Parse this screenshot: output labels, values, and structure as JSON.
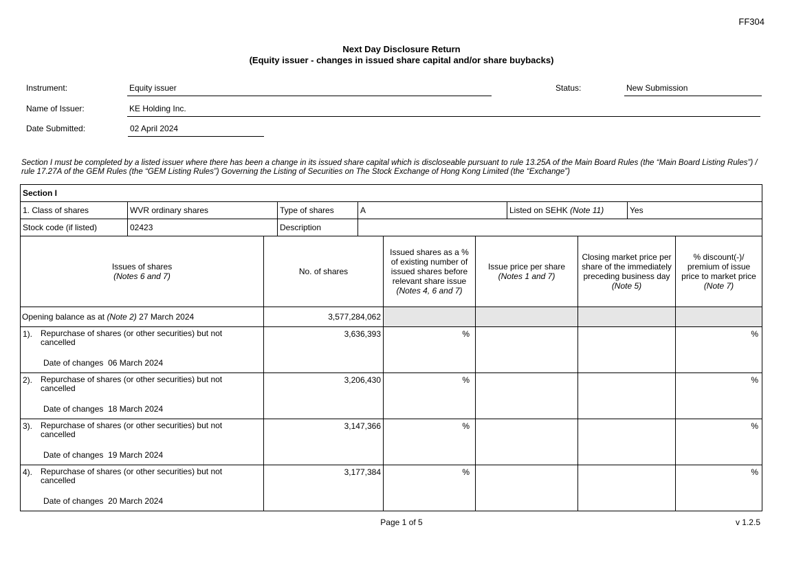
{
  "form_code": "FF304",
  "title": "Next Day Disclosure Return",
  "subtitle": "(Equity issuer - changes in issued share capital and/or share buybacks)",
  "header": {
    "instrument_label": "Instrument:",
    "instrument": "Equity issuer",
    "status_label": "Status:",
    "status": "New Submission",
    "issuer_label": "Name of Issuer:",
    "issuer": "KE Holding Inc.",
    "date_label": "Date Submitted:",
    "date": "02 April 2024"
  },
  "intro": "Section I must be completed by a listed issuer where there has been a change in its issued share capital which is discloseable pursuant to rule 13.25A of the Main Board Rules (the “Main Board Listing Rules”) / rule 17.27A of the GEM Rules (the “GEM Listing Rules”) Governing the Listing of Securities on The Stock Exchange of Hong Kong Limited (the “Exchange”)",
  "section": {
    "title": "Section I",
    "class_label": "1. Class of shares",
    "class": "WVR ordinary shares",
    "type_label": "Type of shares",
    "type": "A",
    "listed_label": "Listed on SEHK",
    "listed_note": "(Note 11)",
    "listed": "Yes",
    "stock_code_label": "Stock code (if listed)",
    "stock_code": "02423",
    "description_label": "Description",
    "description": ""
  },
  "columns": [
    {
      "label": "Issues of shares",
      "note": "(Notes 6 and 7)"
    },
    {
      "label": "No. of shares",
      "note": ""
    },
    {
      "label": "Issued shares as a % of existing number of issued shares before relevant share issue",
      "note": "(Notes 4, 6 and 7)"
    },
    {
      "label": "Issue price per share",
      "note": "(Notes 1 and 7)"
    },
    {
      "label": "Closing market price per share of the immediately preceding business day",
      "note": "(Note 5)"
    },
    {
      "label": "% discount(-)/ premium of issue price to market price",
      "note": "(Note 7)"
    }
  ],
  "opening": {
    "label": "Opening balance as at",
    "note": "(Note 2)",
    "date": "27 March 2024",
    "shares": "3,577,284,062"
  },
  "entries": [
    {
      "num": "1).",
      "desc": "Repurchase of shares (or other securities) but not cancelled",
      "date_label": "Date of changes",
      "date": "06 March 2024",
      "shares": "3,636,393",
      "pct": "%",
      "discount": "%"
    },
    {
      "num": "2).",
      "desc": "Repurchase of shares (or other securities) but not cancelled",
      "date_label": "Date of changes",
      "date": "18 March 2024",
      "shares": "3,206,430",
      "pct": "%",
      "discount": "%"
    },
    {
      "num": "3).",
      "desc": "Repurchase of shares (or other securities) but not cancelled",
      "date_label": "Date of changes",
      "date": "19 March 2024",
      "shares": "3,147,366",
      "pct": "%",
      "discount": "%"
    },
    {
      "num": "4).",
      "desc": "Repurchase of shares (or other securities) but not cancelled",
      "date_label": "Date of changes",
      "date": "20 March 2024",
      "shares": "3,177,384",
      "pct": "%",
      "discount": "%"
    }
  ],
  "footer": {
    "page": "Page 1 of 5",
    "version": "v 1.2.5"
  }
}
